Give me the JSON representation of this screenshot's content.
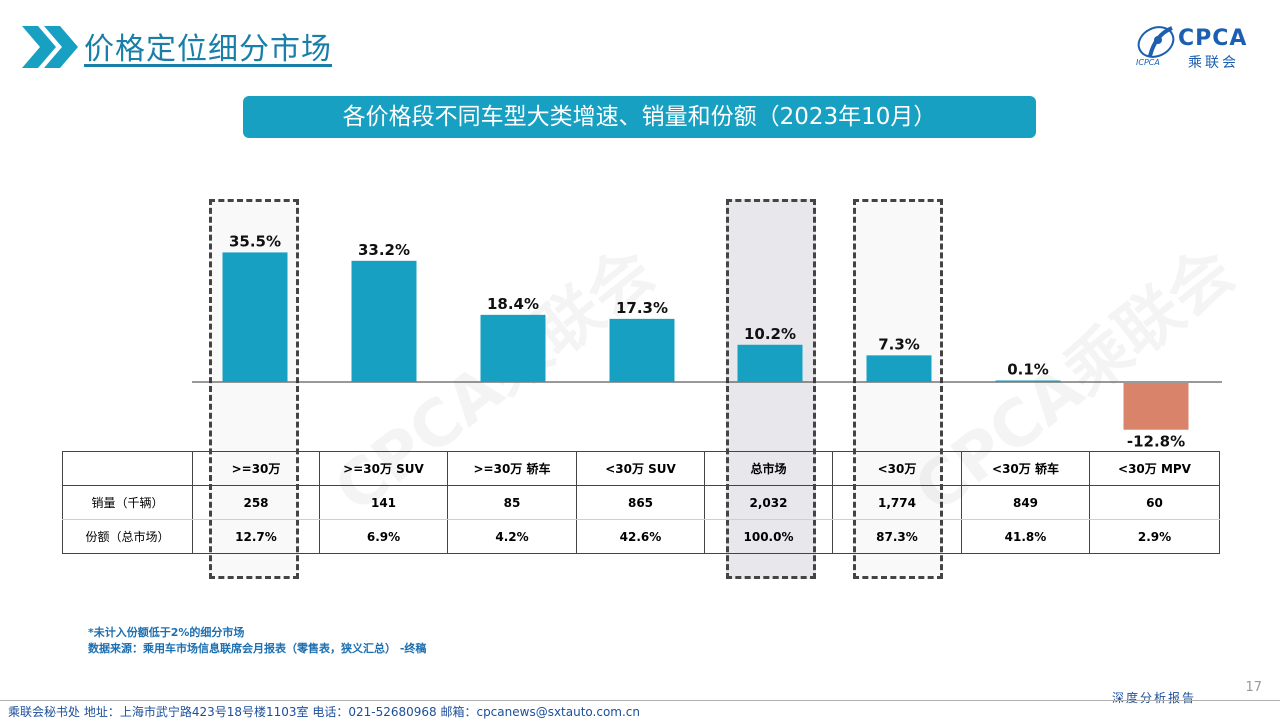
{
  "header": {
    "title": "价格定位细分市场",
    "logo": {
      "cpca": "CPCA",
      "cn": "乘联会",
      "en": "ICPCA"
    }
  },
  "banner": {
    "title": "各价格段不同车型大类增速、销量和份额（2023年10月）"
  },
  "colors": {
    "positive_bar": "#17a0c1",
    "negative_bar": "#d9846a",
    "banner": "#17a0c1",
    "title": "#1a7fa8"
  },
  "watermark": "CPCA乘联会",
  "chart_data": {
    "type": "bar",
    "categories": [
      ">=30万",
      ">=30万 SUV",
      ">=30万 轿车",
      "<30万 SUV",
      "总市场",
      "<30万",
      "<30万 轿车",
      "<30万 MPV"
    ],
    "values": [
      35.5,
      33.2,
      18.4,
      17.3,
      10.2,
      7.3,
      0.1,
      -12.8
    ],
    "labels": [
      "35.5%",
      "33.2%",
      "18.4%",
      "17.3%",
      "10.2%",
      "7.3%",
      "0.1%",
      "-12.8%"
    ],
    "unit": "%",
    "highlighted": [
      ">=30万",
      "总市场",
      "<30万"
    ]
  },
  "table": {
    "headers": [
      "",
      ">=30万",
      ">=30万 SUV",
      ">=30万 轿车",
      "<30万 SUV",
      "总市场",
      "<30万",
      "<30万 轿车",
      "<30万 MPV"
    ],
    "rows": [
      {
        "label": "销量（千辆）",
        "cells": [
          "258",
          "141",
          "85",
          "865",
          "2,032",
          "1,774",
          "849",
          "60"
        ]
      },
      {
        "label": "份额（总市场）",
        "cells": [
          "12.7%",
          "6.9%",
          "4.2%",
          "42.6%",
          "100.0%",
          "87.3%",
          "41.8%",
          "2.9%"
        ]
      }
    ]
  },
  "notes": {
    "line1": "*未计入份额低于2%的细分市场",
    "line2": "数据来源：乘用车市场信息联席会月报表（零售表，狭义汇总）  -终稿"
  },
  "page_number": "17",
  "footer": {
    "address": "乘联会秘书处   地址：上海市武宁路423号18号楼1103室    电话：021-52680968    邮箱：cpcanews@sxtauto.com.cn",
    "tag": "深度分析报告"
  }
}
